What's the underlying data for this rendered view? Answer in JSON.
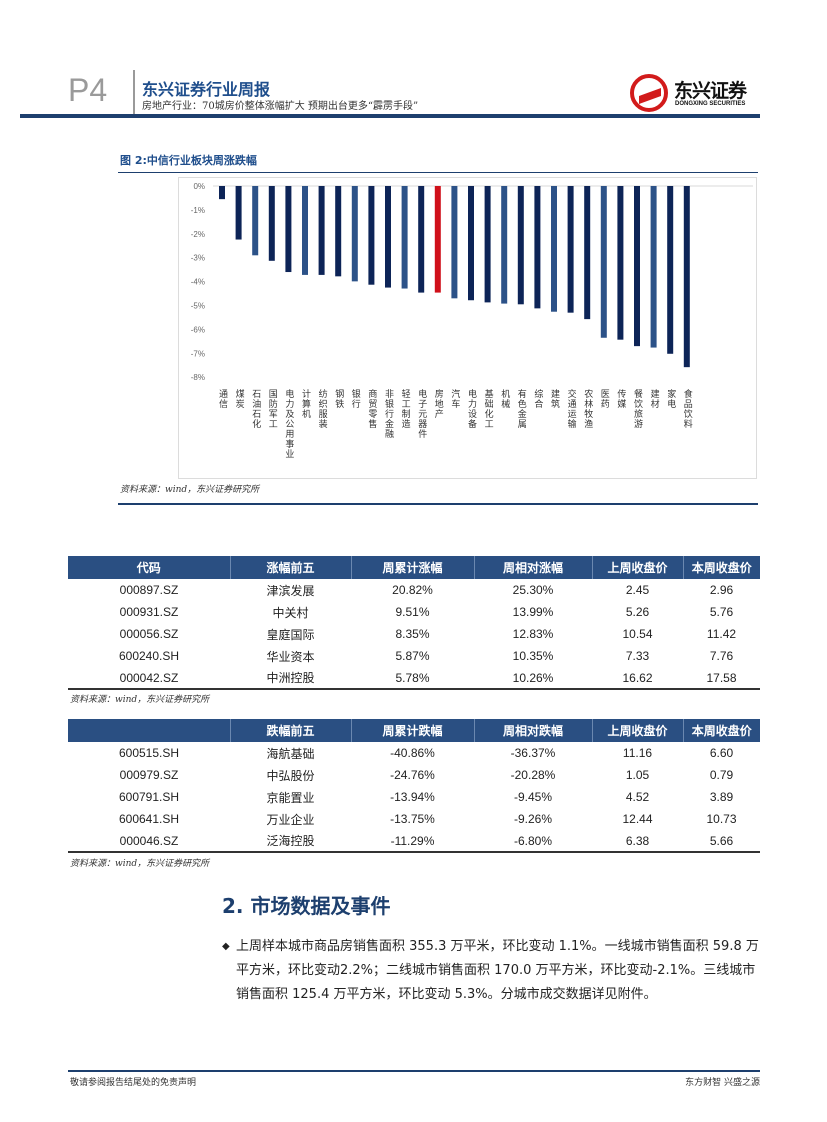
{
  "header": {
    "page": "P4",
    "title": "东兴证券行业周报",
    "subtitle": "房地产行业：70城房价整体涨幅扩大 预期出台更多“霹雳手段”",
    "logo_cn": "东兴证券",
    "logo_en": "DONGXING SECURITIES"
  },
  "figure": {
    "title": "图 2:中信行业板块周涨跌幅",
    "source": "资料来源：wind，东兴证券研究所"
  },
  "chart_data": {
    "type": "bar",
    "title": "中信行业板块周涨跌幅",
    "ylim": [
      -8,
      0
    ],
    "yticks": [
      "0%",
      "-1%",
      "-2%",
      "-3%",
      "-4%",
      "-5%",
      "-6%",
      "-7%",
      "-8%"
    ],
    "highlight": "房地产",
    "colors": {
      "bar": "#0d2457",
      "bar_alt": "#2c5288",
      "highlight": "#d0101a"
    },
    "categories": [
      "通信",
      "煤炭",
      "石油石化",
      "国防军工",
      "电力及公用事业",
      "计算机",
      "纺织服装",
      "钢铁",
      "银行",
      "商贸零售",
      "非银行金融",
      "轻工制造",
      "电子元器件",
      "房地产",
      "汽车",
      "电力设备",
      "基础化工",
      "机械",
      "有色金属",
      "综合",
      "建筑",
      "交通运输",
      "农林牧渔",
      "医药",
      "传媒",
      "餐饮旅游",
      "建材",
      "家电",
      "食品饮料"
    ],
    "values": [
      -0.55,
      -2.24,
      -2.9,
      -3.13,
      -3.6,
      -3.72,
      -3.72,
      -3.78,
      -3.99,
      -4.13,
      -4.25,
      -4.29,
      -4.46,
      -4.46,
      -4.7,
      -4.78,
      -4.87,
      -4.92,
      -4.95,
      -5.12,
      -5.26,
      -5.3,
      -5.57,
      -6.35,
      -6.43,
      -6.7,
      -6.76,
      -7.02,
      -7.58
    ]
  },
  "table_up": {
    "headers": [
      "代码",
      "涨幅前五",
      "周累计涨幅",
      "周相对涨幅",
      "上周收盘价",
      "本周收盘价"
    ],
    "rows": [
      [
        "000897.SZ",
        "津滨发展",
        "20.82%",
        "25.30%",
        "2.45",
        "2.96"
      ],
      [
        "000931.SZ",
        "中关村",
        "9.51%",
        "13.99%",
        "5.26",
        "5.76"
      ],
      [
        "000056.SZ",
        "皇庭国际",
        "8.35%",
        "12.83%",
        "10.54",
        "11.42"
      ],
      [
        "600240.SH",
        "华业资本",
        "5.87%",
        "10.35%",
        "7.33",
        "7.76"
      ],
      [
        "000042.SZ",
        "中洲控股",
        "5.78%",
        "10.26%",
        "16.62",
        "17.58"
      ]
    ],
    "source": "资料来源：wind，东兴证券研究所"
  },
  "table_down": {
    "headers": [
      "",
      "跌幅前五",
      "周累计跌幅",
      "周相对跌幅",
      "上周收盘价",
      "本周收盘价"
    ],
    "rows": [
      [
        "600515.SH",
        "海航基础",
        "-40.86%",
        "-36.37%",
        "11.16",
        "6.60"
      ],
      [
        "000979.SZ",
        "中弘股份",
        "-24.76%",
        "-20.28%",
        "1.05",
        "0.79"
      ],
      [
        "600791.SH",
        "京能置业",
        "-13.94%",
        "-9.45%",
        "4.52",
        "3.89"
      ],
      [
        "600641.SH",
        "万业企业",
        "-13.75%",
        "-9.26%",
        "12.44",
        "10.73"
      ],
      [
        "000046.SZ",
        "泛海控股",
        "-11.29%",
        "-6.80%",
        "6.38",
        "5.66"
      ]
    ],
    "source": "资料来源：wind，东兴证券研究所"
  },
  "section": {
    "heading": "2. 市场数据及事件",
    "bullet": "◆",
    "paragraph": "上周样本城市商品房销售面积 355.3 万平米，环比变动 1.1%。一线城市销售面积 59.8 万平方米，环比变动2.2%；二线城市销售面积 170.0 万平方米，环比变动-2.1%。三线城市销售面积 125.4 万平方米，环比变动 5.3%。分城市成交数据详见附件。"
  },
  "footer": {
    "left": "敬请参阅报告结尾处的免责声明",
    "right": "东方财智 兴盛之源"
  }
}
